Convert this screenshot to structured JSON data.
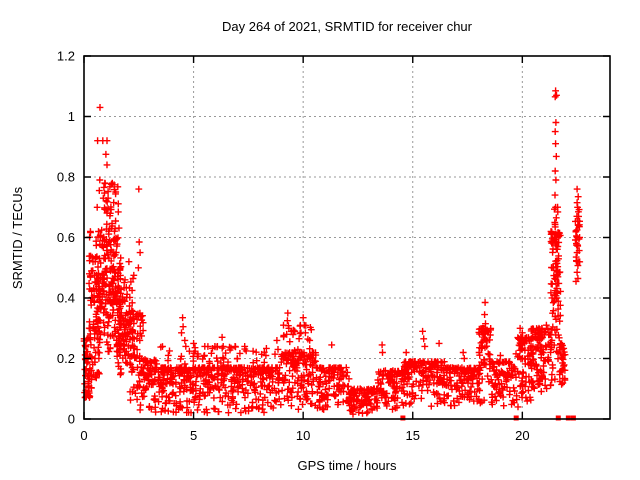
{
  "chart_data": {
    "type": "scatter",
    "title": "Day 264 of 2021, SRMTID for receiver chur",
    "xlabel": "GPS time / hours",
    "ylabel": "SRMTID / TECUs",
    "xlim": [
      0,
      24
    ],
    "ylim": [
      0,
      1.2
    ],
    "xticks": [
      0,
      5,
      10,
      15,
      20
    ],
    "xtick_labels": [
      "0",
      "5",
      "10",
      "15",
      "20"
    ],
    "yticks": [
      0,
      0.2,
      0.4,
      0.6,
      0.8,
      1,
      1.2
    ],
    "ytick_labels": [
      "0",
      "0.2",
      "0.4",
      "0.6",
      "0.8",
      "1",
      "1.2"
    ],
    "grid": true,
    "legend": "none",
    "marker": "plus",
    "marker_color": "#ff0000",
    "grid_color": "#999999",
    "border_color": "#000000",
    "seed": 7,
    "point_count_note": "dense GNSS scatter; segments are density envelopes read from the plot",
    "segments": [
      {
        "h0": 0.0,
        "h1": 0.35,
        "n": 55,
        "lo": 0.07,
        "hi": 0.27,
        "bias": 1.0
      },
      {
        "h0": 0.2,
        "h1": 0.75,
        "n": 80,
        "lo": 0.13,
        "hi": 0.62,
        "bias": 1.3
      },
      {
        "h0": 0.55,
        "h1": 1.7,
        "n": 200,
        "lo": 0.17,
        "hi": 0.66,
        "bias": 1.0,
        "shape": "bell"
      },
      {
        "h0": 0.8,
        "h1": 1.6,
        "n": 40,
        "lo": 0.55,
        "hi": 0.78,
        "bias": 1.6
      },
      {
        "h0": 1.5,
        "h1": 2.3,
        "n": 110,
        "lo": 0.12,
        "hi": 0.5,
        "bias": 1.2,
        "shape": "bell"
      },
      {
        "h0": 2.1,
        "h1": 2.7,
        "n": 55,
        "lo": 0.06,
        "hi": 0.35,
        "bias": 1.4
      },
      {
        "h0": 2.5,
        "h1": 3.3,
        "n": 60,
        "lo": 0.03,
        "hi": 0.2,
        "bias": 1.8
      },
      {
        "h0": 3.2,
        "h1": 9.0,
        "n": 460,
        "lo": 0.02,
        "hi": 0.17,
        "bias": 2.1
      },
      {
        "h0": 3.3,
        "h1": 9.0,
        "n": 70,
        "lo": 0.12,
        "hi": 0.24,
        "bias": 2.0
      },
      {
        "h0": 9.0,
        "h1": 10.6,
        "n": 135,
        "lo": 0.03,
        "hi": 0.22,
        "bias": 1.9
      },
      {
        "h0": 9.1,
        "h1": 10.4,
        "n": 25,
        "lo": 0.18,
        "hi": 0.31,
        "bias": 1.8
      },
      {
        "h0": 10.6,
        "h1": 12.1,
        "n": 115,
        "lo": 0.03,
        "hi": 0.17,
        "bias": 2.0
      },
      {
        "h0": 12.1,
        "h1": 13.4,
        "n": 105,
        "lo": 0.015,
        "hi": 0.1,
        "bias": 1.7
      },
      {
        "h0": 13.4,
        "h1": 14.6,
        "n": 95,
        "lo": 0.03,
        "hi": 0.16,
        "bias": 1.9
      },
      {
        "h0": 14.6,
        "h1": 16.5,
        "n": 155,
        "lo": 0.04,
        "hi": 0.19,
        "bias": 1.9
      },
      {
        "h0": 16.5,
        "h1": 18.1,
        "n": 125,
        "lo": 0.04,
        "hi": 0.17,
        "bias": 1.9
      },
      {
        "h0": 18.0,
        "h1": 18.6,
        "n": 55,
        "lo": 0.05,
        "hi": 0.3,
        "bias": 1.7
      },
      {
        "h0": 18.6,
        "h1": 19.7,
        "n": 80,
        "lo": 0.04,
        "hi": 0.19,
        "bias": 1.8
      },
      {
        "h0": 19.7,
        "h1": 20.5,
        "n": 85,
        "lo": 0.05,
        "hi": 0.27,
        "bias": 1.7
      },
      {
        "h0": 20.4,
        "h1": 21.35,
        "n": 110,
        "lo": 0.08,
        "hi": 0.3,
        "bias": 1.5
      },
      {
        "h0": 21.3,
        "h1": 21.75,
        "n": 85,
        "lo": 0.12,
        "hi": 0.62,
        "bias": 1.6
      },
      {
        "h0": 21.45,
        "h1": 21.62,
        "n": 18,
        "lo": 0.35,
        "hi": 0.72,
        "bias": 1.0
      },
      {
        "h0": 21.7,
        "h1": 21.95,
        "n": 30,
        "lo": 0.08,
        "hi": 0.25,
        "bias": 1.6
      },
      {
        "h0": 22.42,
        "h1": 22.62,
        "n": 22,
        "lo": 0.45,
        "hi": 0.74,
        "bias": 0.8
      }
    ],
    "extra_points": [
      [
        0.73,
        1.03
      ],
      [
        0.62,
        0.92
      ],
      [
        0.86,
        0.92
      ],
      [
        1.05,
        0.92
      ],
      [
        1.0,
        0.875
      ],
      [
        1.05,
        0.84
      ],
      [
        0.72,
        0.79
      ],
      [
        0.95,
        0.78
      ],
      [
        0.7,
        0.755
      ],
      [
        1.1,
        0.73
      ],
      [
        0.6,
        0.7
      ],
      [
        1.2,
        0.68
      ],
      [
        2.5,
        0.76
      ],
      [
        2.52,
        0.585
      ],
      [
        2.56,
        0.55
      ],
      [
        2.05,
        0.52
      ],
      [
        2.48,
        0.5
      ],
      [
        3.9,
        0.225
      ],
      [
        4.5,
        0.335
      ],
      [
        4.52,
        0.305
      ],
      [
        4.45,
        0.285
      ],
      [
        4.6,
        0.26
      ],
      [
        5.0,
        0.25
      ],
      [
        5.5,
        0.21
      ],
      [
        6.3,
        0.27
      ],
      [
        6.35,
        0.24
      ],
      [
        7.0,
        0.2
      ],
      [
        7.4,
        0.225
      ],
      [
        8.3,
        0.21
      ],
      [
        8.8,
        0.26
      ],
      [
        8.85,
        0.23
      ],
      [
        9.3,
        0.35
      ],
      [
        9.28,
        0.325
      ],
      [
        9.35,
        0.3
      ],
      [
        9.25,
        0.28
      ],
      [
        9.9,
        0.285
      ],
      [
        10.0,
        0.335
      ],
      [
        10.05,
        0.31
      ],
      [
        10.1,
        0.285
      ],
      [
        10.3,
        0.26
      ],
      [
        11.3,
        0.245
      ],
      [
        13.6,
        0.245
      ],
      [
        13.62,
        0.22
      ],
      [
        14.7,
        0.22
      ],
      [
        15.45,
        0.29
      ],
      [
        15.5,
        0.265
      ],
      [
        15.55,
        0.24
      ],
      [
        16.2,
        0.25
      ],
      [
        17.3,
        0.22
      ],
      [
        17.35,
        0.2
      ],
      [
        18.3,
        0.385
      ],
      [
        18.28,
        0.345
      ],
      [
        18.32,
        0.315
      ],
      [
        18.25,
        0.3
      ],
      [
        18.2,
        0.28
      ],
      [
        18.35,
        0.26
      ],
      [
        19.0,
        0.21
      ],
      [
        19.8,
        0.04
      ],
      [
        19.9,
        0.3
      ],
      [
        20.0,
        0.285
      ],
      [
        20.05,
        0.26
      ],
      [
        20.6,
        0.27
      ],
      [
        20.9,
        0.3
      ],
      [
        21.0,
        0.285
      ],
      [
        21.1,
        0.31
      ],
      [
        21.52,
        1.085
      ],
      [
        21.56,
        1.07
      ],
      [
        21.5,
        1.065
      ],
      [
        21.53,
        0.98
      ],
      [
        21.5,
        0.95
      ],
      [
        21.52,
        0.91
      ],
      [
        21.55,
        0.868
      ],
      [
        21.5,
        0.82
      ],
      [
        21.53,
        0.79
      ],
      [
        21.49,
        0.74
      ],
      [
        21.52,
        0.7
      ],
      [
        21.55,
        0.665
      ],
      [
        21.5,
        0.635
      ],
      [
        21.47,
        0.61
      ],
      [
        22.5,
        0.76
      ],
      [
        22.55,
        0.735
      ],
      [
        22.5,
        0.715
      ],
      [
        22.52,
        0.7
      ],
      [
        22.56,
        0.685
      ],
      [
        22.49,
        0.67
      ],
      [
        22.53,
        0.655
      ],
      [
        22.55,
        0.64
      ],
      [
        22.5,
        0.625
      ],
      [
        22.47,
        0.605
      ],
      [
        22.52,
        0.575
      ],
      [
        22.5,
        0.55
      ],
      [
        22.55,
        0.52
      ],
      [
        22.5,
        0.485
      ],
      [
        22.45,
        0.455
      ]
    ],
    "zero_squares": [
      14.55,
      19.72,
      21.64,
      22.1,
      22.33
    ]
  }
}
